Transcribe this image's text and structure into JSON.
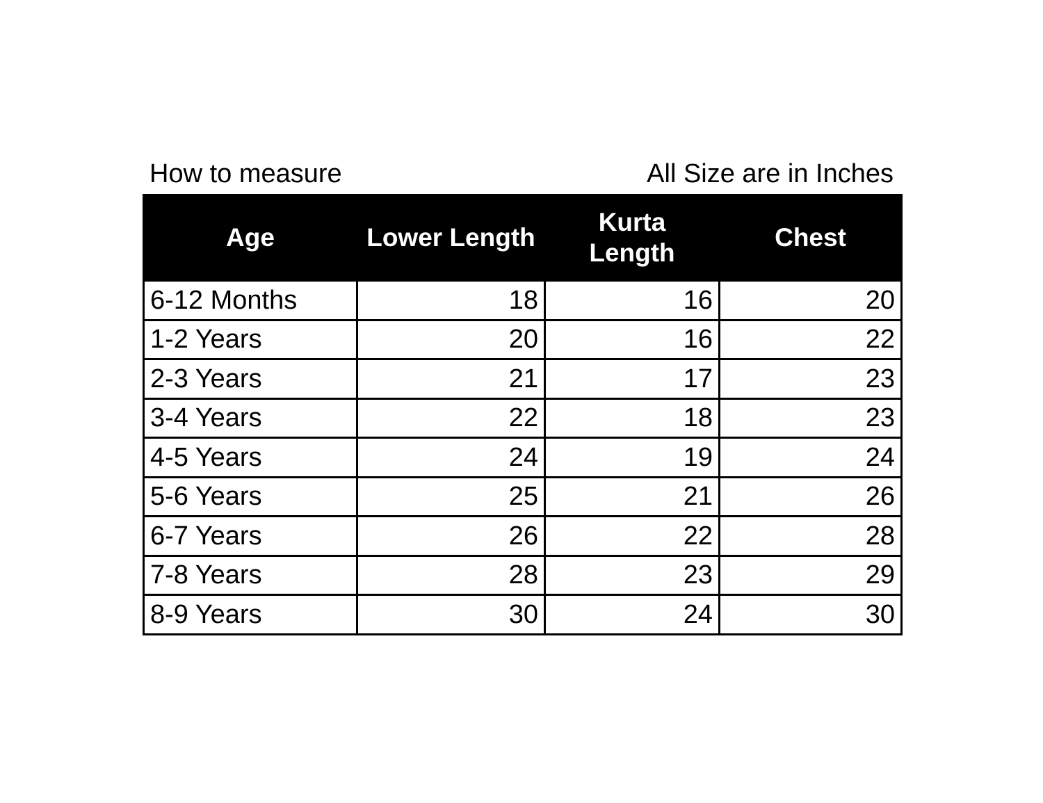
{
  "caption_left": "How to measure",
  "caption_right": "All Size are in Inches",
  "headers": [
    "Age",
    "Lower Length",
    "Kurta Length",
    "Chest"
  ],
  "rows": [
    [
      "6-12 Months",
      "18",
      "16",
      "20"
    ],
    [
      "1-2 Years",
      "20",
      "16",
      "22"
    ],
    [
      "2-3 Years",
      "21",
      "17",
      "23"
    ],
    [
      "3-4 Years",
      "22",
      "18",
      "23"
    ],
    [
      "4-5 Years",
      "24",
      "19",
      "24"
    ],
    [
      "5-6 Years",
      "25",
      "21",
      "26"
    ],
    [
      "6-7 Years",
      "26",
      "22",
      "28"
    ],
    [
      "7-8 Years",
      "28",
      "23",
      "29"
    ],
    [
      "8-9 Years",
      "30",
      "24",
      "30"
    ]
  ]
}
